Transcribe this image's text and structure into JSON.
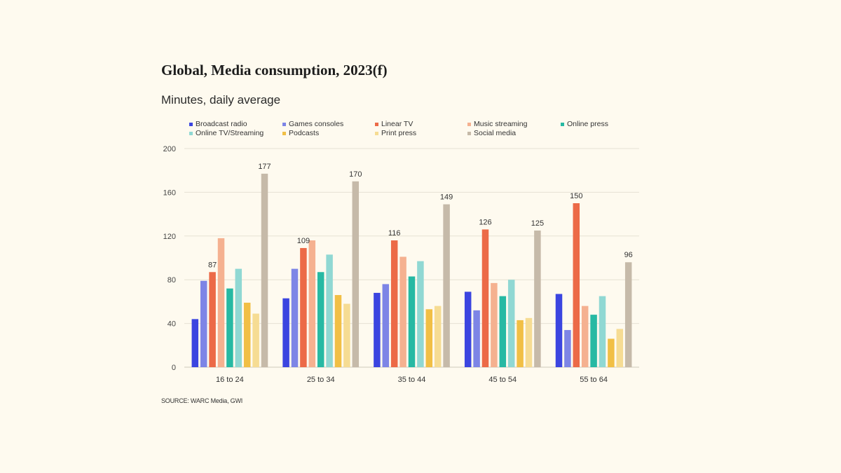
{
  "chart_data": {
    "type": "bar",
    "title": "Global, Media consumption, 2023(f)",
    "subtitle": "Minutes, daily average",
    "source": "SOURCE: WARC Media, GWI",
    "xlabel": "",
    "ylabel": "",
    "ylim": [
      0,
      200
    ],
    "yticks": [
      0,
      40,
      80,
      120,
      160,
      200
    ],
    "grid": true,
    "legend_position": "top",
    "categories": [
      "16 to 24",
      "25 to 34",
      "35 to 44",
      "45 to 54",
      "55 to 64"
    ],
    "series": [
      {
        "name": "Broadcast radio",
        "color": "#3b45e0",
        "values": [
          44,
          63,
          68,
          69,
          67
        ]
      },
      {
        "name": "Games consoles",
        "color": "#7d85e6",
        "values": [
          79,
          90,
          76,
          52,
          34
        ]
      },
      {
        "name": "Linear TV",
        "color": "#ec6a47",
        "values": [
          87,
          109,
          116,
          126,
          150
        ]
      },
      {
        "name": "Music streaming",
        "color": "#f5b190",
        "values": [
          118,
          116,
          101,
          77,
          56
        ]
      },
      {
        "name": "Online press",
        "color": "#27b9a3",
        "values": [
          72,
          87,
          83,
          65,
          48
        ]
      },
      {
        "name": "Online TV/Streaming",
        "color": "#90d8d3",
        "values": [
          90,
          103,
          97,
          80,
          65
        ]
      },
      {
        "name": "Podcasts",
        "color": "#f1bf45",
        "values": [
          59,
          66,
          53,
          43,
          26
        ]
      },
      {
        "name": "Print press",
        "color": "#f6dc93",
        "values": [
          49,
          58,
          56,
          45,
          35
        ]
      },
      {
        "name": "Social media",
        "color": "#c6baa9",
        "values": [
          177,
          170,
          149,
          125,
          96
        ]
      }
    ],
    "annotations": [
      {
        "category": "16 to 24",
        "series": "Linear TV",
        "text": "87"
      },
      {
        "category": "16 to 24",
        "series": "Social media",
        "text": "177"
      },
      {
        "category": "25 to 34",
        "series": "Linear TV",
        "text": "109"
      },
      {
        "category": "25 to 34",
        "series": "Social media",
        "text": "170"
      },
      {
        "category": "35 to 44",
        "series": "Linear TV",
        "text": "116"
      },
      {
        "category": "35 to 44",
        "series": "Social media",
        "text": "149"
      },
      {
        "category": "45 to 54",
        "series": "Linear TV",
        "text": "126"
      },
      {
        "category": "45 to 54",
        "series": "Social media",
        "text": "125"
      },
      {
        "category": "55 to 64",
        "series": "Linear TV",
        "text": "150"
      },
      {
        "category": "55 to 64",
        "series": "Social media",
        "text": "96"
      }
    ],
    "colors": {
      "background": "#fefaef",
      "grid": "#e6e1d4",
      "text": "#333333"
    }
  }
}
